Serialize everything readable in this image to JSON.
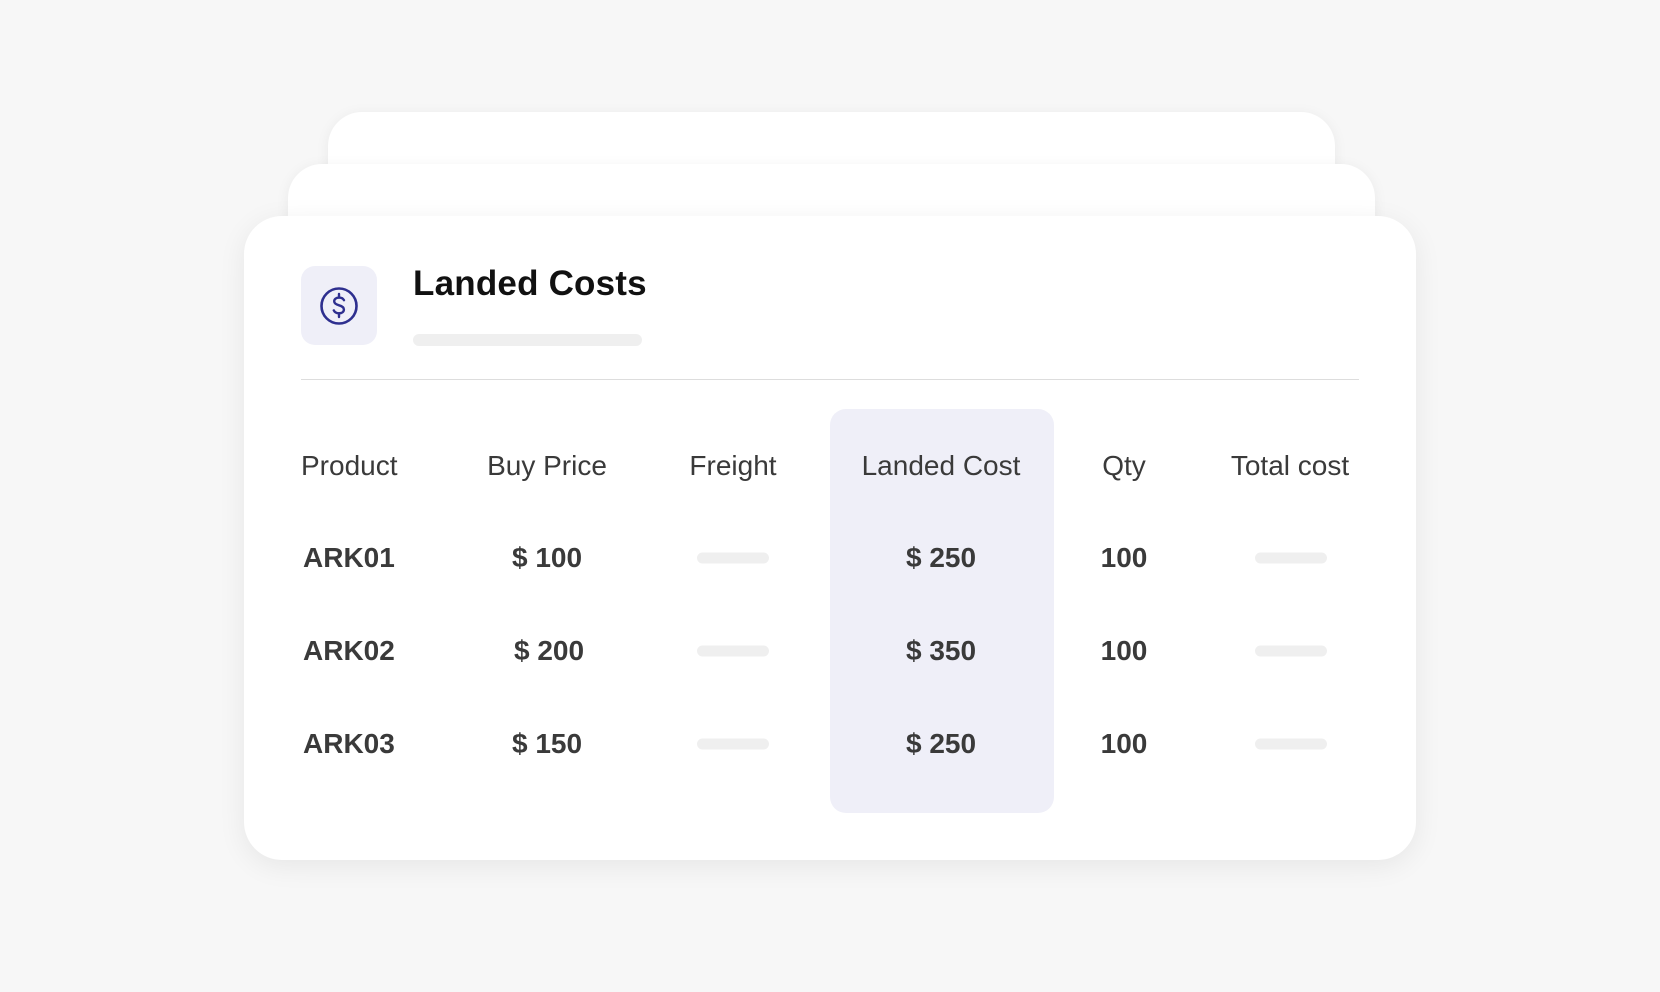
{
  "card": {
    "title": "Landed Costs",
    "icon": "dollar-circle-icon"
  },
  "colors": {
    "accent": "#2e2f8f",
    "highlight": "#efeff8",
    "text": "#3a3a3a"
  },
  "table": {
    "headers": {
      "product": "Product",
      "buy_price": "Buy Price",
      "freight": "Freight",
      "landed_cost": "Landed Cost",
      "qty": "Qty",
      "total_cost": "Total cost"
    },
    "rows": [
      {
        "product": "ARK01",
        "buy_price": "$ 100",
        "landed_cost": "$ 250",
        "qty": "100"
      },
      {
        "product": "ARK02",
        "buy_price": "$ 200",
        "landed_cost": "$ 350",
        "qty": "100"
      },
      {
        "product": "ARK03",
        "buy_price": "$ 150",
        "landed_cost": "$ 250",
        "qty": "100"
      }
    ]
  }
}
